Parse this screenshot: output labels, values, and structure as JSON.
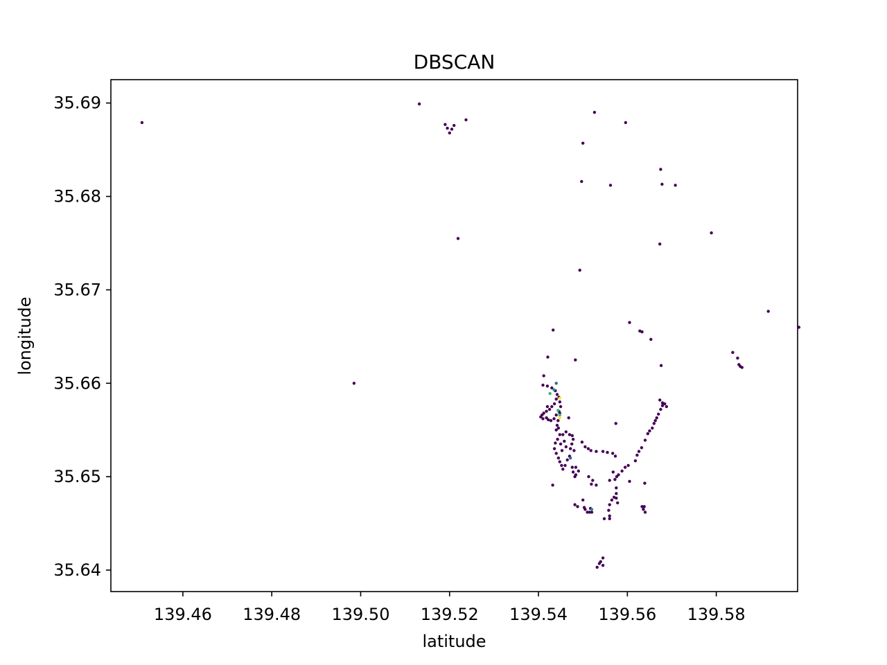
{
  "chart_data": {
    "type": "scatter",
    "title": "DBSCAN",
    "xlabel": "latitude",
    "ylabel": "longitude",
    "xlim": [
      139.4438,
      139.5983
    ],
    "ylim": [
      35.6377,
      35.6925
    ],
    "grid": false,
    "legend": "none",
    "x_ticks": [
      "139.46",
      "139.48",
      "139.50",
      "139.52",
      "139.54",
      "139.56",
      "139.58"
    ],
    "x_tick_values": [
      139.46,
      139.48,
      139.5,
      139.52,
      139.54,
      139.56,
      139.58
    ],
    "y_ticks": [
      "35.64",
      "35.65",
      "35.66",
      "35.67",
      "35.68",
      "35.69"
    ],
    "y_tick_values": [
      35.64,
      35.65,
      35.66,
      35.67,
      35.68,
      35.69
    ],
    "colors": {
      "noise": "#440154",
      "c1": "#31688e",
      "c2": "#21918c",
      "c3": "#35b779",
      "c4": "#fde725",
      "axes": "#000000"
    },
    "series": [
      {
        "cluster": "noise",
        "points": [
          [
            139.4508,
            35.6879
          ],
          [
            139.5132,
            35.6899
          ],
          [
            139.519,
            35.6877
          ],
          [
            139.5195,
            35.6873
          ],
          [
            139.52,
            35.6868
          ],
          [
            139.5205,
            35.6872
          ],
          [
            139.521,
            35.6876
          ],
          [
            139.5237,
            35.6882
          ],
          [
            139.5526,
            35.689
          ],
          [
            139.5596,
            35.6879
          ],
          [
            139.55,
            35.6857
          ],
          [
            139.5675,
            35.6829
          ],
          [
            139.5678,
            35.6813
          ],
          [
            139.5708,
            35.6812
          ],
          [
            139.5497,
            35.6816
          ],
          [
            139.5562,
            35.6812
          ],
          [
            139.5219,
            35.6755
          ],
          [
            139.5673,
            35.6749
          ],
          [
            139.5789,
            35.6761
          ],
          [
            139.5493,
            35.6721
          ],
          [
            139.5917,
            35.6677
          ],
          [
            139.5986,
            35.666
          ],
          [
            139.5433,
            35.6657
          ],
          [
            139.5605,
            35.6665
          ],
          [
            139.5628,
            35.6656
          ],
          [
            139.5633,
            35.6655
          ],
          [
            139.5653,
            35.6647
          ],
          [
            139.5837,
            35.6633
          ],
          [
            139.5848,
            35.6627
          ],
          [
            139.5851,
            35.662
          ],
          [
            139.5854,
            35.6618
          ],
          [
            139.5858,
            35.6617
          ],
          [
            139.5421,
            35.6628
          ],
          [
            139.5483,
            35.6625
          ],
          [
            139.5676,
            35.6619
          ],
          [
            139.4985,
            35.66
          ],
          [
            139.5412,
            35.6608
          ],
          [
            139.541,
            35.6598
          ],
          [
            139.542,
            35.6597
          ],
          [
            139.543,
            35.6595
          ],
          [
            139.5438,
            35.6592
          ],
          [
            139.5442,
            35.6588
          ],
          [
            139.5446,
            35.6585
          ],
          [
            139.5448,
            35.658
          ],
          [
            139.544,
            35.6583
          ],
          [
            139.5436,
            35.6578
          ],
          [
            139.543,
            35.6575
          ],
          [
            139.5425,
            35.6572
          ],
          [
            139.542,
            35.6575
          ],
          [
            139.5418,
            35.657
          ],
          [
            139.5412,
            35.6568
          ],
          [
            139.5408,
            35.6566
          ],
          [
            139.5405,
            35.6564
          ],
          [
            139.541,
            35.6562
          ],
          [
            139.5418,
            35.6563
          ],
          [
            139.5422,
            35.6561
          ],
          [
            139.5428,
            35.656
          ],
          [
            139.5435,
            35.6562
          ],
          [
            139.544,
            35.6566
          ],
          [
            139.5446,
            35.657
          ],
          [
            139.545,
            35.6575
          ],
          [
            139.5448,
            35.6568
          ],
          [
            139.5444,
            35.656
          ],
          [
            139.5442,
            35.6555
          ],
          [
            139.544,
            35.655
          ],
          [
            139.5445,
            35.6552
          ],
          [
            139.5448,
            35.6545
          ],
          [
            139.5443,
            35.654
          ],
          [
            139.5438,
            35.6536
          ],
          [
            139.5436,
            35.653
          ],
          [
            139.544,
            35.6525
          ],
          [
            139.5445,
            35.652
          ],
          [
            139.5448,
            35.6516
          ],
          [
            139.5452,
            35.6512
          ],
          [
            139.5455,
            35.6508
          ],
          [
            139.546,
            35.6512
          ],
          [
            139.5465,
            35.6518
          ],
          [
            139.547,
            35.6522
          ],
          [
            139.5472,
            35.653
          ],
          [
            139.5475,
            35.6535
          ],
          [
            139.5478,
            35.654
          ],
          [
            139.547,
            35.6545
          ],
          [
            139.5462,
            35.6548
          ],
          [
            139.5455,
            35.6545
          ],
          [
            139.5458,
            35.6538
          ],
          [
            139.5462,
            35.6532
          ],
          [
            139.5453,
            35.6528
          ],
          [
            139.545,
            35.6535
          ],
          [
            139.5468,
            35.6563
          ],
          [
            139.5476,
            35.6544
          ],
          [
            139.548,
            35.6528
          ],
          [
            139.5476,
            35.651
          ],
          [
            139.5478,
            35.6505
          ],
          [
            139.5484,
            35.6502
          ],
          [
            139.549,
            35.6506
          ],
          [
            139.5484,
            35.651
          ],
          [
            139.5482,
            35.65
          ],
          [
            139.5432,
            35.6491
          ],
          [
            139.5498,
            35.6537
          ],
          [
            139.5505,
            35.6532
          ],
          [
            139.5512,
            35.653
          ],
          [
            139.5518,
            35.6528
          ],
          [
            139.553,
            35.6527
          ],
          [
            139.5545,
            35.6527
          ],
          [
            139.5555,
            35.6526
          ],
          [
            139.5567,
            35.6525
          ],
          [
            139.5573,
            35.6522
          ],
          [
            139.5574,
            35.6557
          ],
          [
            139.5568,
            35.6505
          ],
          [
            139.556,
            35.6496
          ],
          [
            139.5572,
            35.6497
          ],
          [
            139.5576,
            35.65
          ],
          [
            139.558,
            35.6502
          ],
          [
            139.5588,
            35.6506
          ],
          [
            139.5595,
            35.651
          ],
          [
            139.5602,
            35.6512
          ],
          [
            139.5618,
            35.6517
          ],
          [
            139.5622,
            35.6523
          ],
          [
            139.5626,
            35.6527
          ],
          [
            139.5632,
            35.6531
          ],
          [
            139.564,
            35.6539
          ],
          [
            139.5646,
            35.6546
          ],
          [
            139.565,
            35.6549
          ],
          [
            139.5656,
            35.6552
          ],
          [
            139.566,
            35.6557
          ],
          [
            139.5663,
            35.656
          ],
          [
            139.5666,
            35.6563
          ],
          [
            139.567,
            35.6567
          ],
          [
            139.5675,
            35.6572
          ],
          [
            139.5679,
            35.6576
          ],
          [
            139.5684,
            35.6578
          ],
          [
            139.5673,
            35.6582
          ],
          [
            139.5679,
            35.6579
          ],
          [
            139.5688,
            35.6575
          ],
          [
            139.5605,
            35.6495
          ],
          [
            139.5639,
            35.6493
          ],
          [
            139.5513,
            35.65
          ],
          [
            139.5519,
            35.6492
          ],
          [
            139.5522,
            35.6496
          ],
          [
            139.553,
            35.6491
          ],
          [
            139.556,
            35.647
          ],
          [
            139.5565,
            35.6475
          ],
          [
            139.557,
            35.6478
          ],
          [
            139.5575,
            35.6482
          ],
          [
            139.5575,
            35.6488
          ],
          [
            139.5578,
            35.6472
          ],
          [
            139.5575,
            35.6477
          ],
          [
            139.5482,
            35.647
          ],
          [
            139.5488,
            35.6468
          ],
          [
            139.55,
            35.6475
          ],
          [
            139.5503,
            35.6467
          ],
          [
            139.5505,
            35.6465
          ],
          [
            139.551,
            35.6462
          ],
          [
            139.5515,
            35.6462
          ],
          [
            139.552,
            35.6462
          ],
          [
            139.5517,
            35.6466
          ],
          [
            139.5633,
            35.6468
          ],
          [
            139.5636,
            35.6465
          ],
          [
            139.5638,
            35.6468
          ],
          [
            139.564,
            35.6462
          ],
          [
            139.5558,
            35.6464
          ],
          [
            139.556,
            35.6458
          ],
          [
            139.556,
            35.6455
          ],
          [
            139.5548,
            35.6455
          ],
          [
            139.5545,
            35.6413
          ],
          [
            139.554,
            35.6409
          ],
          [
            139.5537,
            35.6407
          ],
          [
            139.5532,
            35.6403
          ],
          [
            139.5545,
            35.6405
          ]
        ]
      },
      {
        "cluster": "c1",
        "points": [
          [
            139.544,
            35.66
          ],
          [
            139.5472,
            35.652
          ]
        ]
      },
      {
        "cluster": "c2",
        "points": [
          [
            139.5435,
            35.6593
          ],
          [
            139.552,
            35.6465
          ]
        ]
      },
      {
        "cluster": "c3",
        "points": [
          [
            139.5426,
            35.6589
          ],
          [
            139.5444,
            35.6571
          ],
          [
            139.5448,
            35.6566
          ]
        ]
      },
      {
        "cluster": "c4",
        "points": [
          [
            139.5448,
            35.6584
          ],
          [
            139.5448,
            35.6563
          ]
        ]
      }
    ]
  }
}
